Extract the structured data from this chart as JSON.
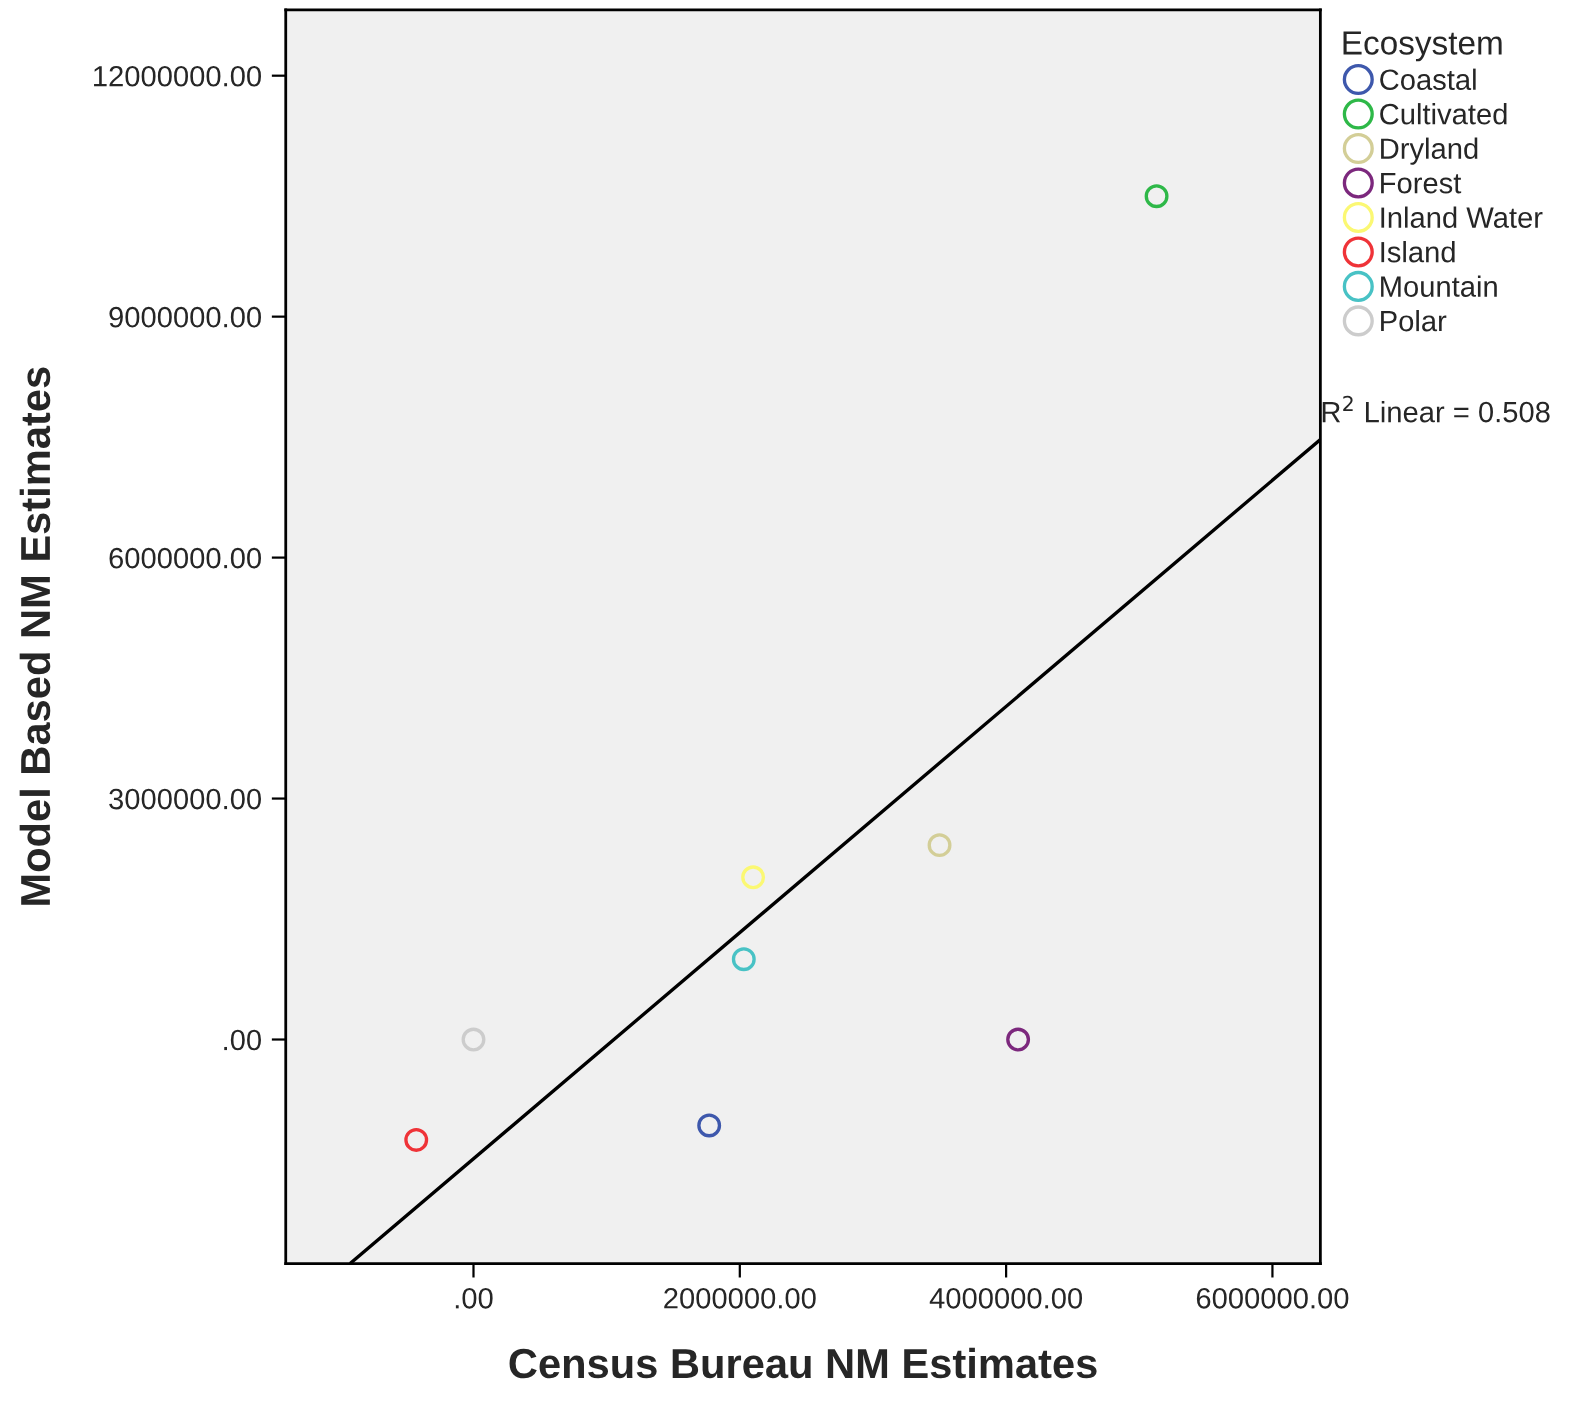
{
  "chart_data": {
    "type": "scatter",
    "xlabel": "Census Bureau NM Estimates",
    "ylabel": "Model Based NM Estimates",
    "legend_title": "Ecosystem",
    "series": [
      {
        "name": "Coastal",
        "color": "#3e58ac",
        "x": [
          1770000
        ],
        "values": [
          -1070000
        ]
      },
      {
        "name": "Cultivated",
        "color": "#2eb848",
        "x": [
          5130000
        ],
        "values": [
          10500000
        ]
      },
      {
        "name": "Dryland",
        "color": "#d3ce97",
        "x": [
          3500000
        ],
        "values": [
          2420000
        ]
      },
      {
        "name": "Forest",
        "color": "#7c287d",
        "x": [
          4090000
        ],
        "values": [
          0
        ]
      },
      {
        "name": "Inland Water",
        "color": "#fbf873",
        "x": [
          2100000
        ],
        "values": [
          2020000
        ]
      },
      {
        "name": "Island",
        "color": "#ef3338",
        "x": [
          -430000
        ],
        "values": [
          -1250000
        ]
      },
      {
        "name": "Mountain",
        "color": "#48c2c5",
        "x": [
          2030000
        ],
        "values": [
          1000000
        ]
      },
      {
        "name": "Polar",
        "color": "#cccccc",
        "x": [
          0
        ],
        "values": [
          0
        ]
      },
      {
        "type": "line",
        "marker": "none",
        "color": "#000000",
        "x": [
          -920000,
          6360000
        ],
        "values": [
          -2780000,
          7470000
        ]
      }
    ],
    "annotations": [
      {
        "text": "R$^{2}$ Linear = 0.508",
        "x": 6360000,
        "y": 7470000
      }
    ],
    "xlim": [
      -1410000,
      6360000
    ],
    "ylim": [
      -2790000,
      12820000
    ],
    "xticks": [
      {
        "value": 0,
        "label": ".00"
      },
      {
        "value": 2000000,
        "label": "2000000.00"
      },
      {
        "value": 4000000,
        "label": "4000000.00"
      },
      {
        "value": 6000000,
        "label": "6000000.00"
      }
    ],
    "yticks": [
      {
        "value": 0,
        "label": ".00"
      },
      {
        "value": 3000000,
        "label": "3000000.00"
      },
      {
        "value": 6000000,
        "label": "6000000.00"
      },
      {
        "value": 9000000,
        "label": "9000000.00"
      },
      {
        "value": 12000000,
        "label": "12000000.00"
      }
    ],
    "marker": "circle",
    "grid": false,
    "legend": "right"
  }
}
